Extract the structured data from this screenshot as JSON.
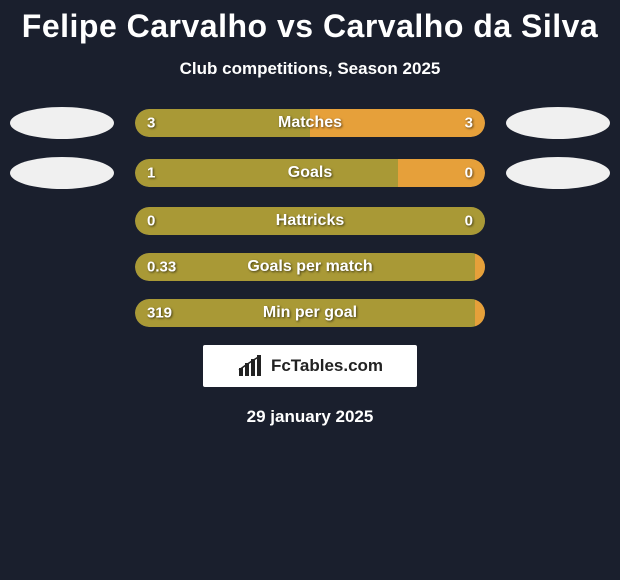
{
  "title": "Felipe Carvalho vs Carvalho da Silva",
  "subtitle": "Club competitions, Season 2025",
  "date": "29 january 2025",
  "brand": "FcTables.com",
  "colors": {
    "background": "#1a1f2d",
    "left_bar": "#a99936",
    "right_bar": "#e6a03a",
    "track": "#3a3f4d",
    "avatar": "#f0f0f0",
    "text": "#ffffff"
  },
  "stats": [
    {
      "label": "Matches",
      "left_val": "3",
      "right_val": "3",
      "left_pct": 50,
      "right_pct": 50
    },
    {
      "label": "Goals",
      "left_val": "1",
      "right_val": "0",
      "left_pct": 75,
      "right_pct": 25
    },
    {
      "label": "Hattricks",
      "left_val": "0",
      "right_val": "0",
      "left_pct": 100,
      "right_pct": 0
    },
    {
      "label": "Goals per match",
      "left_val": "0.33",
      "right_val": "",
      "left_pct": 97,
      "right_pct": 3
    },
    {
      "label": "Min per goal",
      "left_val": "319",
      "right_val": "",
      "left_pct": 97,
      "right_pct": 3
    }
  ],
  "avatars": {
    "show_row1": true,
    "show_row2": true
  }
}
